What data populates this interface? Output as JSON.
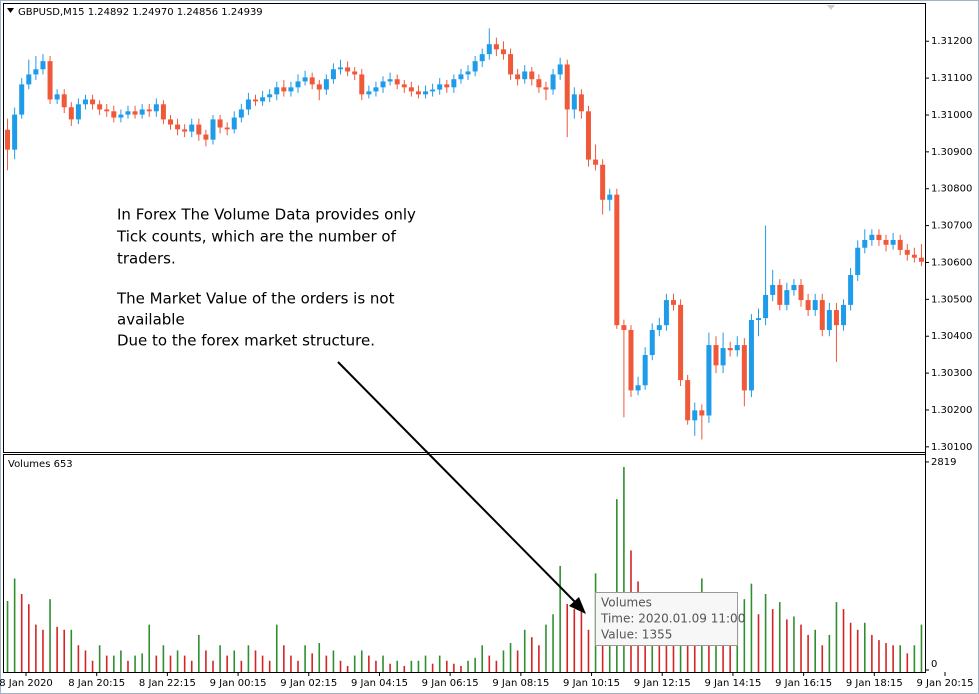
{
  "header": {
    "symbol_info": "GBPUSD,M15  1.24892 1.24970 1.24856 1.24939"
  },
  "chart_data": [
    {
      "type": "candlestick",
      "up_color": "#1e9be9",
      "down_color": "#f0583a",
      "ylim": [
        1.30086,
        1.31301
      ],
      "yticks": [
        {
          "value": 1.301,
          "label": "1.30100"
        },
        {
          "value": 1.302,
          "label": "1.30200"
        },
        {
          "value": 1.303,
          "label": "1.30300"
        },
        {
          "value": 1.304,
          "label": "1.30400"
        },
        {
          "value": 1.305,
          "label": "1.30500"
        },
        {
          "value": 1.306,
          "label": "1.30600"
        },
        {
          "value": 1.307,
          "label": "1.30700"
        },
        {
          "value": 1.308,
          "label": "1.30800"
        },
        {
          "value": 1.309,
          "label": "1.30900"
        },
        {
          "value": 1.31,
          "label": "1.31000"
        },
        {
          "value": 1.311,
          "label": "1.31100"
        },
        {
          "value": 1.312,
          "label": "1.31200"
        }
      ],
      "open": [
        1.3096,
        1.30906,
        1.31001,
        1.31083,
        1.3111,
        1.31124,
        1.31146,
        1.31042,
        1.31056,
        1.31021,
        1.30988,
        1.31029,
        1.31042,
        1.31029,
        1.31015,
        1.3101,
        1.30993,
        1.31001,
        1.3101,
        1.31001,
        1.31015,
        1.3101,
        1.31029,
        1.30988,
        1.30974,
        1.30961,
        1.30955,
        1.30974,
        1.30947,
        1.30933,
        1.30988,
        1.30966,
        1.30961,
        1.30993,
        1.31015,
        1.31042,
        1.31037,
        1.31048,
        1.31056,
        1.31075,
        1.31064,
        1.31075,
        1.31091,
        1.31102,
        1.31083,
        1.31069,
        1.31097,
        1.31124,
        1.31129,
        1.31118,
        1.3111,
        1.31056,
        1.31064,
        1.31075,
        1.31091,
        1.31097,
        1.31083,
        1.31075,
        1.31064,
        1.31056,
        1.31064,
        1.31069,
        1.31083,
        1.31075,
        1.31097,
        1.3111,
        1.31118,
        1.31146,
        1.31165,
        1.31192,
        1.31178,
        1.31165,
        1.3111,
        1.31097,
        1.31118,
        1.31097,
        1.31075,
        1.31069,
        1.3111,
        1.31137,
        1.31015,
        1.31056,
        1.3101,
        1.30879,
        1.30865,
        1.3077,
        1.30784,
        1.3043,
        1.30417,
        1.30253,
        1.30267,
        1.30349,
        1.30417,
        1.3043,
        1.30498,
        1.30485,
        1.30281,
        1.30172,
        1.30199,
        1.30185,
        1.30376,
        1.30321,
        1.30368,
        1.30362,
        1.30376,
        1.30253,
        1.30444,
        1.30449,
        1.30512,
        1.30539,
        1.30485,
        1.30525,
        1.30539,
        1.30498,
        1.30471,
        1.30498,
        1.30417,
        1.30471,
        1.3043,
        1.30485,
        1.30566,
        1.3064,
        1.30661,
        1.30675,
        1.30661,
        1.30648,
        1.30661,
        1.30634,
        1.30621,
        1.30613
      ],
      "high": [
        1.3099,
        1.3102,
        1.311,
        1.3115,
        1.3116,
        1.31165,
        1.3116,
        1.3107,
        1.3107,
        1.31035,
        1.31045,
        1.31055,
        1.31055,
        1.3104,
        1.3103,
        1.31025,
        1.31015,
        1.31025,
        1.31025,
        1.3103,
        1.3103,
        1.31045,
        1.3104,
        1.31,
        1.3099,
        1.30975,
        1.3099,
        1.3099,
        1.3096,
        1.31,
        1.31,
        1.3098,
        1.3101,
        1.3103,
        1.3106,
        1.31055,
        1.31065,
        1.3107,
        1.3109,
        1.31095,
        1.3109,
        1.3111,
        1.3112,
        1.31115,
        1.31095,
        1.3111,
        1.3114,
        1.3115,
        1.31145,
        1.3113,
        1.31125,
        1.3108,
        1.3109,
        1.31105,
        1.31115,
        1.3111,
        1.31095,
        1.3109,
        1.3108,
        1.3108,
        1.31085,
        1.311,
        1.31095,
        1.3111,
        1.31125,
        1.31135,
        1.3116,
        1.3118,
        1.31235,
        1.3121,
        1.312,
        1.3118,
        1.31125,
        1.31135,
        1.3113,
        1.3111,
        1.3109,
        1.31125,
        1.31155,
        1.3115,
        1.31075,
        1.3107,
        1.31025,
        1.3092,
        1.3088,
        1.308,
        1.308,
        1.30445,
        1.3043,
        1.3029,
        1.3037,
        1.30435,
        1.3045,
        1.30515,
        1.30515,
        1.305,
        1.30295,
        1.3022,
        1.30215,
        1.3041,
        1.304,
        1.3041,
        1.30385,
        1.304,
        1.30395,
        1.3046,
        1.30475,
        1.307,
        1.3058,
        1.30555,
        1.30545,
        1.30555,
        1.30555,
        1.30515,
        1.30515,
        1.30515,
        1.3049,
        1.3049,
        1.305,
        1.30585,
        1.3066,
        1.3069,
        1.3069,
        1.3069,
        1.30675,
        1.3068,
        1.30675,
        1.3065,
        1.3064,
        1.3065
      ],
      "low": [
        1.3085,
        1.3088,
        1.3099,
        1.3107,
        1.31095,
        1.3111,
        1.3103,
        1.3103,
        1.31005,
        1.3097,
        1.30975,
        1.31015,
        1.31015,
        1.31,
        1.30995,
        1.3098,
        1.3098,
        1.3099,
        1.3099,
        1.3099,
        1.30995,
        1.30995,
        1.30975,
        1.3096,
        1.30945,
        1.3094,
        1.3094,
        1.3093,
        1.30915,
        1.3092,
        1.3095,
        1.30945,
        1.3095,
        1.3098,
        1.31,
        1.31025,
        1.31025,
        1.31035,
        1.3104,
        1.3105,
        1.3105,
        1.3106,
        1.3108,
        1.3107,
        1.3104,
        1.31055,
        1.31085,
        1.3111,
        1.31105,
        1.31095,
        1.3104,
        1.31045,
        1.3105,
        1.3106,
        1.3108,
        1.3107,
        1.3106,
        1.3105,
        1.31045,
        1.31045,
        1.3105,
        1.31055,
        1.3106,
        1.3106,
        1.31085,
        1.31095,
        1.31105,
        1.3113,
        1.3115,
        1.3116,
        1.3115,
        1.31095,
        1.3108,
        1.31085,
        1.3108,
        1.3106,
        1.3104,
        1.31055,
        1.31095,
        1.3094,
        1.3099,
        1.3099,
        1.3086,
        1.3085,
        1.3073,
        1.3074,
        1.3042,
        1.3018,
        1.30235,
        1.3024,
        1.30255,
        1.30335,
        1.304,
        1.30415,
        1.3047,
        1.30265,
        1.3016,
        1.3013,
        1.3012,
        1.30165,
        1.303,
        1.303,
        1.30345,
        1.30345,
        1.3021,
        1.30235,
        1.304,
        1.3043,
        1.30495,
        1.3047,
        1.3047,
        1.3051,
        1.3048,
        1.30455,
        1.30455,
        1.304,
        1.304,
        1.3033,
        1.30415,
        1.3047,
        1.3055,
        1.30625,
        1.30645,
        1.30645,
        1.3063,
        1.30635,
        1.3062,
        1.30605,
        1.306,
        1.3059
      ],
      "close": [
        1.30906,
        1.31001,
        1.31083,
        1.3111,
        1.31124,
        1.31146,
        1.31042,
        1.31056,
        1.31021,
        1.30988,
        1.31029,
        1.31042,
        1.31029,
        1.31015,
        1.3101,
        1.30993,
        1.31001,
        1.3101,
        1.31001,
        1.31015,
        1.3101,
        1.31029,
        1.30988,
        1.30974,
        1.30961,
        1.30955,
        1.30974,
        1.30947,
        1.30933,
        1.30988,
        1.30966,
        1.30961,
        1.30993,
        1.31015,
        1.31042,
        1.31037,
        1.31048,
        1.31056,
        1.31075,
        1.31064,
        1.31075,
        1.31091,
        1.31102,
        1.31083,
        1.31069,
        1.31097,
        1.31124,
        1.31129,
        1.31118,
        1.3111,
        1.31056,
        1.31064,
        1.31075,
        1.31091,
        1.31097,
        1.31083,
        1.31075,
        1.31064,
        1.31056,
        1.31064,
        1.31069,
        1.31083,
        1.31075,
        1.31097,
        1.3111,
        1.31118,
        1.31146,
        1.31165,
        1.31192,
        1.31178,
        1.31165,
        1.3111,
        1.31097,
        1.31118,
        1.31097,
        1.31075,
        1.31069,
        1.3111,
        1.31137,
        1.31015,
        1.31056,
        1.3101,
        1.30879,
        1.30865,
        1.3077,
        1.30784,
        1.3043,
        1.30417,
        1.30253,
        1.30267,
        1.30349,
        1.30417,
        1.3043,
        1.30498,
        1.30485,
        1.30281,
        1.30172,
        1.30199,
        1.30185,
        1.30376,
        1.30321,
        1.30368,
        1.30362,
        1.30376,
        1.30253,
        1.30444,
        1.30449,
        1.30512,
        1.30539,
        1.30485,
        1.30525,
        1.30539,
        1.30498,
        1.30471,
        1.30498,
        1.30417,
        1.30471,
        1.3043,
        1.30485,
        1.30566,
        1.3064,
        1.30661,
        1.30675,
        1.30661,
        1.30648,
        1.30661,
        1.30634,
        1.30621,
        1.30613,
        1.30602
      ]
    },
    {
      "type": "bar",
      "title": "Volumes 653",
      "up_color": "#2f8f2f",
      "down_color": "#d42424",
      "ylim": [
        0,
        2913
      ],
      "yticks": [
        0,
        2819
      ],
      "values": [
        935,
        1240,
        1030,
        890,
        615,
        545,
        960,
        585,
        545,
        545,
        335,
        265,
        125,
        335,
        195,
        195,
        265,
        125,
        195,
        225,
        615,
        195,
        335,
        195,
        265,
        195,
        125,
        475,
        265,
        125,
        335,
        195,
        265,
        125,
        335,
        265,
        195,
        125,
        615,
        335,
        195,
        125,
        335,
        225,
        365,
        195,
        265,
        125,
        55,
        195,
        265,
        195,
        125,
        195,
        85,
        125,
        55,
        125,
        125,
        195,
        85,
        195,
        125,
        85,
        55,
        125,
        165,
        335,
        195,
        125,
        265,
        365,
        265,
        545,
        445,
        335,
        615,
        755,
        1410,
        895,
        825,
        795,
        545,
        1310,
        405,
        920,
        2315,
        2750,
        1620,
        1200,
        640,
        1030,
        895,
        640,
        545,
        1030,
        920,
        755,
        1240,
        755,
        920,
        755,
        615,
        780,
        960,
        1170,
        755,
        1030,
        825,
        920,
        685,
        725,
        615,
        475,
        545,
        335,
        475,
        920,
        825,
        640,
        545,
        640,
        475,
        405,
        365,
        335,
        335,
        225,
        335,
        615
      ],
      "x_labels": [
        "8 Jan 2020",
        "8 Jan 20:15",
        "8 Jan 22:15",
        "9 Jan 00:15",
        "9 Jan 02:15",
        "9 Jan 04:15",
        "9 Jan 06:15",
        "9 Jan 08:15",
        "9 Jan 10:15",
        "9 Jan 12:15",
        "9 Jan 14:15",
        "9 Jan 16:15",
        "9 Jan 18:15",
        "9 Jan 20:15"
      ]
    }
  ],
  "annotation": {
    "paragraphs": [
      [
        "In Forex The Volume Data provides only",
        "Tick counts, which are the number of",
        "traders."
      ],
      [
        "The Market Value of the orders is not",
        "available",
        "Due to the forex market structure."
      ]
    ]
  },
  "tooltip": {
    "title": "Volumes",
    "time": "Time: 2020.01.09 11:00",
    "value": "Value: 1355"
  }
}
